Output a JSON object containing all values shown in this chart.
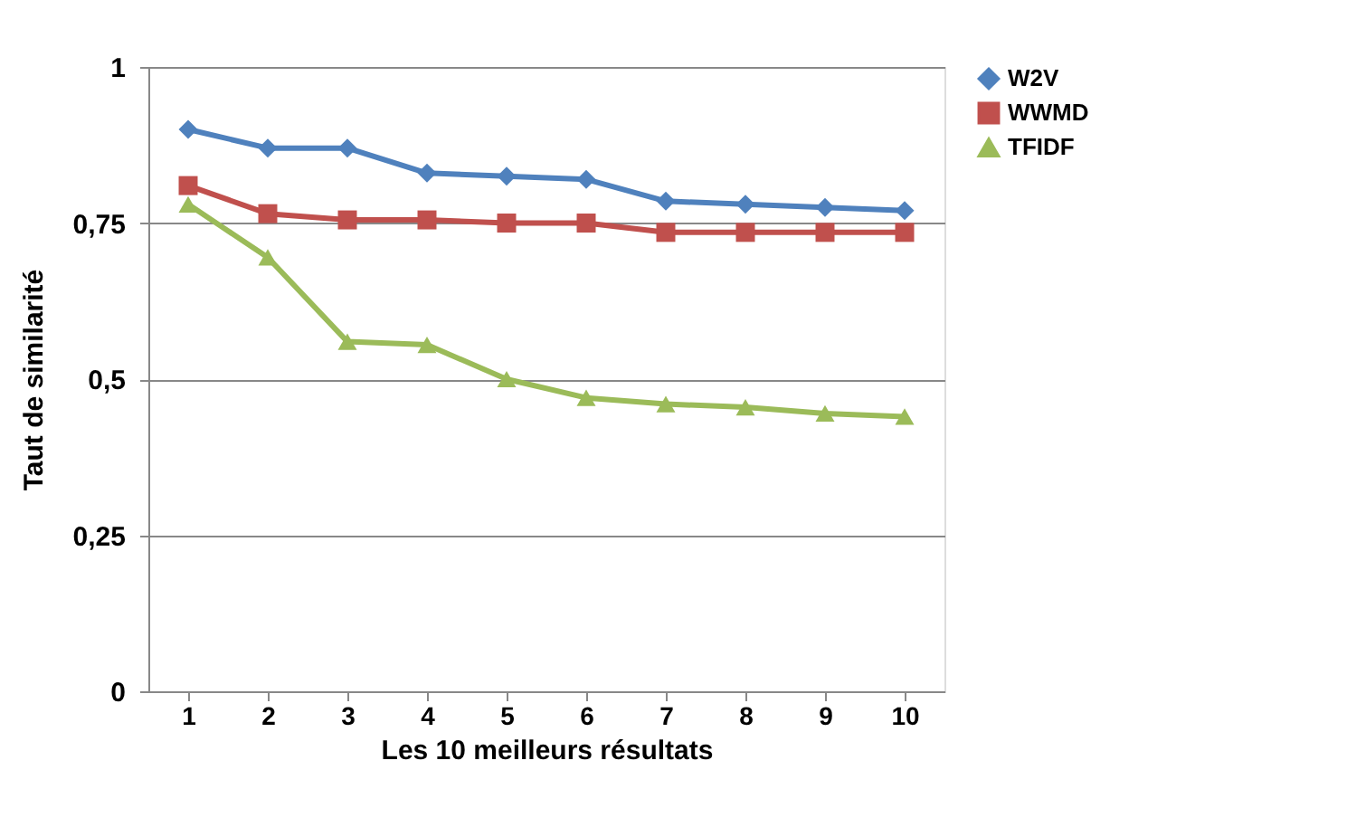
{
  "chart_data": {
    "type": "line",
    "xlabel": "Les 10 meilleurs résultats",
    "ylabel": "Taut de similarité",
    "categories": [
      "1",
      "2",
      "3",
      "4",
      "5",
      "6",
      "7",
      "8",
      "9",
      "10"
    ],
    "series": [
      {
        "name": "W2V",
        "color": "#4f81bd",
        "marker": "diamond",
        "values": [
          0.9,
          0.87,
          0.87,
          0.83,
          0.825,
          0.82,
          0.785,
          0.78,
          0.775,
          0.77
        ]
      },
      {
        "name": "WWMD",
        "color": "#c0504d",
        "marker": "square",
        "values": [
          0.81,
          0.765,
          0.755,
          0.755,
          0.75,
          0.75,
          0.735,
          0.735,
          0.735,
          0.735
        ]
      },
      {
        "name": "TFIDF",
        "color": "#9bbb59",
        "marker": "triangle",
        "values": [
          0.78,
          0.695,
          0.56,
          0.555,
          0.5,
          0.47,
          0.46,
          0.455,
          0.445,
          0.44
        ]
      }
    ],
    "ylim": [
      0,
      1
    ],
    "yticks": [
      0,
      {
        "value": 0.25,
        "label": "0,25"
      },
      {
        "value": 0.5,
        "label": "0,5"
      },
      {
        "value": 0.75,
        "label": "0,75"
      },
      1
    ],
    "grid": "y",
    "legend": "right",
    "line_style": "solid"
  }
}
